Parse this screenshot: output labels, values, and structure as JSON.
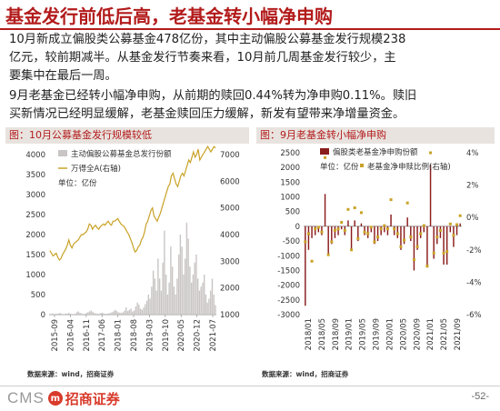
{
  "title": "基金发行前低后高，老基金转小幅净申购",
  "paragraphs": [
    [
      "10月新成立偏股类公募基金478亿份，其中主动偏股公募基金发行规模238",
      "亿元，较前期减半。从基金发行节奏来看，10月前几周基金发行较少，主",
      "要集中在最后一周。"
    ],
    [
      "9月老基金已经转小幅净申购，从前期的赎回0.44%转为净申购0.11%。赎旧",
      "买新情况已经明显缓解，老基金赎回压力缓解，新发有望带来净增量资金。"
    ]
  ],
  "charts": [
    {
      "heading": "图：10月公募基金发行规模较低",
      "source": "数据来源：wind，招商证券",
      "chart_data": {
        "type": "bar",
        "legend": [
          "主动偏股公募基金总发行份额",
          "万得全A(右轴)"
        ],
        "annotation": "单位：亿份",
        "y_ticks": [
          "4000",
          "3500",
          "3000",
          "2500",
          "2000",
          "1500",
          "1000",
          "500",
          "0"
        ],
        "y2_ticks": [
          "7000",
          "6000",
          "5000",
          "4000",
          "3000",
          "2000",
          "1000"
        ],
        "ylim": [
          0,
          4000
        ],
        "y2lim": [
          1000,
          7000
        ],
        "x_ticks": [
          "2015-09",
          "2016-04",
          "2016-11",
          "2017-06",
          "2018-01",
          "2018-08",
          "2019-03",
          "2019-10",
          "2020-05",
          "2020-12",
          "2021-07"
        ],
        "series": [
          {
            "name": "主动偏股公募基金总发行份额",
            "type": "bar",
            "color": "#c9c5c4",
            "values": [
              20,
              15,
              30,
              10,
              25,
              20,
              40,
              35,
              15,
              10,
              30,
              25,
              45,
              20,
              15,
              10,
              20,
              60,
              80,
              45,
              30,
              15,
              20,
              40,
              60,
              80,
              100,
              70,
              40,
              30,
              20,
              25,
              35,
              50,
              30,
              20,
              25,
              30,
              40,
              60,
              80,
              120,
              90,
              60,
              50,
              40,
              60,
              100,
              180,
              90,
              120,
              150,
              80,
              100,
              200,
              300,
              250,
              150,
              120,
              180,
              260,
              350,
              500,
              400,
              700,
              1100,
              900,
              600,
              1400,
              900,
              600,
              1300,
              2100,
              1000,
              500,
              800,
              1700,
              1200,
              700,
              500,
              900,
              1500,
              2000,
              1700,
              1000,
              1400,
              2300,
              1900,
              1200,
              800,
              1000,
              1300,
              1500,
              900,
              600,
              700,
              800,
              1000,
              500,
              300,
              400,
              600,
              900,
              500,
              238
            ]
          },
          {
            "name": "万得全A(右轴)",
            "type": "line",
            "color": "#c9a227",
            "values": [
              3400,
              3300,
              3200,
              3250,
              3300,
              3150,
              3050,
              3100,
              3250,
              3350,
              3450,
              3600,
              3800,
              3600,
              3500,
              3650,
              3700,
              3750,
              3800,
              3900,
              4000,
              4000,
              4050,
              4100,
              4200,
              4400,
              4350,
              4200,
              4300,
              4350,
              4250,
              4200,
              4300,
              4350,
              4400,
              4350,
              4450,
              4500,
              4400,
              4350,
              4500,
              4500,
              4550,
              4600,
              4500,
              4400,
              4350,
              4300,
              4200,
              4100,
              4000,
              3850,
              3700,
              3500,
              3350,
              3400,
              3550,
              3600,
              3800,
              3900,
              4100,
              4400,
              4500,
              4700,
              4900,
              5000,
              4700,
              4600,
              4500,
              4650,
              4800,
              5000,
              5200,
              5400,
              5600,
              5800,
              5900,
              6200,
              6300,
              6100,
              5900,
              5800,
              6000,
              6200,
              6300,
              6200,
              6400,
              6600,
              6800,
              6700,
              6900,
              7100,
              6900,
              7000,
              7200,
              6800,
              6900,
              7000,
              7100,
              7200,
              7300,
              7200,
              7100,
              7200,
              7300,
              7250
            ]
          }
        ]
      }
    },
    {
      "heading": "图：9月老基金转小幅净申购",
      "source": "数据来源：wind，招商证券",
      "chart_data": {
        "type": "bar",
        "legend": [
          "偏股类老基金净申购份额",
          "老基金净申赎比例(右轴)"
        ],
        "annotation": "单位：亿份",
        "y_ticks": [
          "2500",
          "2000",
          "1500",
          "1000",
          "500",
          "0",
          "-500",
          "-1000",
          "-1500",
          "-2000",
          "-2500",
          "-3000"
        ],
        "y2_ticks": [
          "4%",
          "2%",
          "0%",
          "-2%",
          "-4%",
          "-6%"
        ],
        "ylim": [
          -3000,
          2500
        ],
        "y2lim": [
          -6,
          4
        ],
        "x_ticks": [
          "2018/01",
          "2018/05",
          "2018/09",
          "2019/01",
          "2019/05",
          "2019/09",
          "2020/01",
          "2020/05",
          "2020/09",
          "2021/01",
          "2021/05",
          "2021/09"
        ],
        "series": [
          {
            "name": "偏股类老基金净申购份额",
            "type": "bar",
            "color": "#8b1c1c",
            "values": [
              -2700,
              -800,
              -400,
              -300,
              -200,
              -300,
              1100,
              -1000,
              -600,
              -400,
              -300,
              -100,
              -300,
              200,
              -800,
              200,
              -500,
              100,
              -300,
              -400,
              -200,
              -600,
              -500,
              -300,
              -200,
              -300,
              400,
              -300,
              -400,
              -800,
              -600,
              300,
              -500,
              -1500,
              -800,
              -400,
              -200,
              -1400,
              2100,
              -1100,
              -600,
              -400,
              -1300,
              -1300,
              -200,
              -700,
              -300,
              100
            ]
          },
          {
            "name": "老基金净申赎比例(右轴)",
            "type": "scatter",
            "color": "#c9a227",
            "values": [
              -1.5,
              -1.0,
              -2.7,
              -0.7,
              -0.6,
              -0.9,
              3.7,
              -2.3,
              -1.5,
              -0.8,
              -0.7,
              -0.3,
              -0.8,
              0.5,
              -2.0,
              0.6,
              -1.3,
              0.3,
              -0.9,
              -1.0,
              -0.6,
              -1.5,
              -1.2,
              -0.7,
              -0.5,
              -0.7,
              1.1,
              -0.7,
              -1.0,
              -1.8,
              -1.4,
              0.9,
              -1.2,
              -2.6,
              -1.8,
              -1.0,
              -0.5,
              -3.0,
              4.0,
              -2.2,
              -1.2,
              -0.8,
              -2.2,
              -2.1,
              -0.4,
              -1.1,
              -0.44,
              0.11
            ]
          }
        ]
      }
    }
  ],
  "logo": {
    "cms": "CMS",
    "badge": "m",
    "cn": "招商证券"
  },
  "page_number": "-52-"
}
